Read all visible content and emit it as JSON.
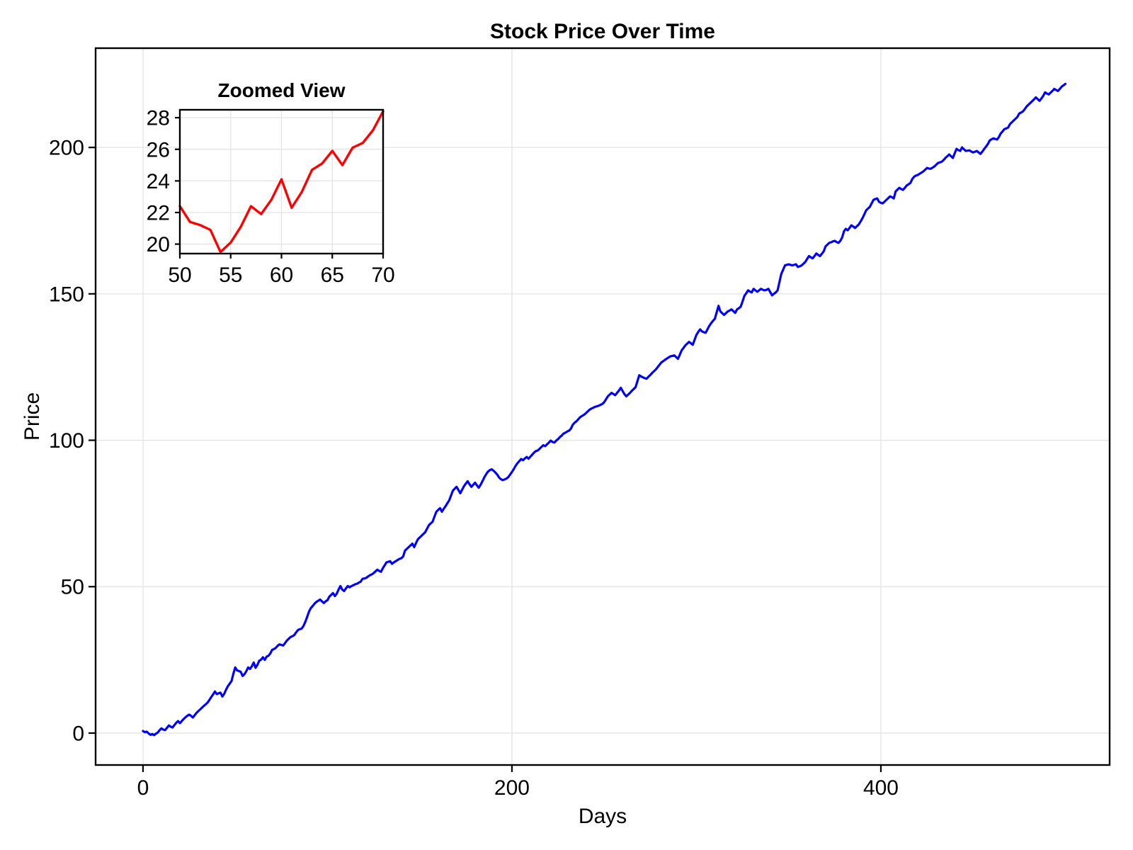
{
  "figure": {
    "title": "Stock Price Over Time",
    "xlabel": "Days",
    "ylabel": "Price",
    "inset_title": "Zoomed View"
  },
  "colors": {
    "main_line": "#0000ff",
    "inset_line": "#ff0000",
    "grid": "#e3e3e3",
    "axis": "#000000",
    "background": "#ffffff"
  },
  "chart_data": [
    {
      "type": "line",
      "name": "stock-price-series",
      "title": "Stock Price Over Time",
      "xlabel": "Days",
      "ylabel": "Price",
      "legend": null,
      "grid": true,
      "xticks": [
        0,
        200,
        400
      ],
      "yticks": [
        0,
        50,
        100,
        150,
        200
      ],
      "xlim": [
        -25.7,
        524
      ],
      "ylim": [
        -10.9,
        233.9
      ],
      "color": "#0000ff",
      "x_start": 0,
      "x_step": 1,
      "values": [
        0.7,
        0.3,
        0.5,
        -0.1,
        -0.6,
        -0.3,
        -0.7,
        -0.2,
        0.2,
        1.0,
        1.6,
        1.2,
        1.0,
        1.8,
        2.6,
        2.2,
        1.9,
        2.7,
        3.5,
        4.1,
        3.4,
        4.1,
        4.8,
        5.4,
        5.9,
        6.3,
        5.9,
        5.3,
        6.1,
        6.9,
        7.5,
        8.1,
        8.7,
        9.3,
        9.8,
        10.4,
        11.3,
        12.3,
        13.2,
        14.2,
        13.3,
        13.6,
        13.8,
        12.5,
        13.4,
        14.8,
        16.0,
        16.9,
        17.8,
        20.3,
        22.4,
        21.4,
        21.2,
        20.9,
        19.5,
        20.1,
        21.1,
        22.4,
        21.9,
        22.8,
        24.1,
        22.3,
        23.3,
        24.7,
        25.1,
        25.9,
        25.0,
        26.1,
        26.4,
        27.2,
        28.4,
        28.7,
        29.1,
        29.8,
        30.3,
        30.1,
        29.9,
        30.7,
        31.6,
        32.2,
        32.8,
        33.1,
        33.5,
        34.4,
        35.2,
        35.5,
        35.7,
        36.6,
        38.0,
        39.7,
        41.5,
        42.7,
        43.4,
        44.2,
        44.8,
        45.2,
        45.6,
        45.0,
        44.4,
        45.0,
        45.4,
        46.6,
        47.2,
        47.8,
        46.8,
        47.6,
        49.0,
        50.2,
        49.0,
        48.5,
        49.4,
        50.2,
        49.8,
        50.2,
        50.5,
        50.8,
        51.0,
        51.4,
        51.7,
        52.7,
        52.8,
        53.0,
        53.5,
        53.9,
        54.2,
        54.6,
        55.2,
        55.8,
        55.4,
        55.1,
        56.3,
        57.3,
        58.3,
        58.5,
        58.7,
        57.8,
        58.3,
        58.7,
        59.1,
        59.5,
        59.7,
        60.3,
        62.3,
        62.9,
        63.5,
        64.1,
        64.7,
        63.5,
        64.9,
        66.2,
        66.8,
        67.4,
        68.0,
        68.6,
        69.8,
        71.0,
        71.6,
        72.2,
        73.9,
        75.6,
        76.2,
        76.8,
        75.6,
        76.6,
        77.5,
        78.5,
        79.5,
        81.2,
        82.8,
        83.5,
        84.1,
        83.0,
        81.9,
        83.1,
        84.3,
        85.2,
        86.0,
        85.0,
        84.1,
        84.8,
        85.5,
        84.6,
        83.8,
        84.8,
        86.0,
        87.3,
        88.4,
        89.3,
        89.8,
        90.1,
        89.6,
        89.0,
        88.3,
        87.3,
        86.7,
        86.4,
        86.6,
        86.9,
        87.4,
        88.3,
        89.2,
        90.2,
        91.3,
        92.2,
        92.9,
        93.6,
        93.2,
        93.8,
        94.3,
        93.7,
        94.4,
        95.1,
        95.8,
        96.3,
        96.5,
        97.1,
        97.7,
        98.3,
        98.0,
        98.6,
        99.2,
        99.9,
        99.4,
        99.2,
        99.9,
        100.4,
        101.1,
        101.6,
        102.3,
        102.6,
        103.0,
        103.3,
        104.0,
        105.3,
        106.0,
        106.5,
        107.2,
        107.9,
        108.3,
        108.7,
        109.2,
        109.8,
        110.4,
        110.8,
        111.1,
        111.4,
        111.6,
        111.8,
        112.1,
        112.4,
        113.0,
        114.0,
        115.0,
        115.6,
        116.2,
        115.8,
        115.4,
        116.2,
        117.0,
        117.9,
        116.8,
        115.7,
        115.0,
        115.6,
        116.2,
        116.9,
        117.5,
        118.1,
        120.1,
        122.2,
        121.8,
        121.5,
        121.2,
        121.0,
        121.7,
        122.3,
        123.0,
        123.6,
        124.2,
        125.0,
        125.8,
        126.6,
        127.0,
        127.5,
        127.9,
        128.3,
        128.7,
        128.8,
        129.0,
        128.4,
        127.8,
        129.2,
        130.7,
        131.5,
        132.4,
        133.0,
        133.6,
        133.1,
        132.6,
        134.3,
        136.0,
        137.0,
        137.9,
        137.2,
        136.9,
        136.7,
        137.9,
        139.1,
        140.0,
        140.8,
        141.5,
        143.7,
        145.9,
        144.0,
        143.4,
        142.8,
        143.4,
        144.0,
        144.3,
        144.7,
        144.1,
        143.5,
        144.7,
        145.1,
        145.6,
        147.4,
        149.3,
        150.2,
        151.2,
        150.8,
        150.5,
        151.7,
        151.2,
        150.7,
        151.2,
        151.7,
        151.4,
        151.2,
        151.4,
        151.7,
        150.6,
        149.5,
        150.0,
        150.5,
        151.2,
        154.0,
        156.8,
        158.2,
        159.7,
        159.9,
        160.1,
        159.9,
        159.7,
        159.9,
        160.1,
        159.2,
        159.4,
        159.7,
        160.3,
        160.9,
        161.9,
        162.9,
        162.5,
        162.1,
        162.9,
        163.8,
        163.3,
        162.9,
        163.7,
        164.5,
        166.2,
        166.8,
        167.4,
        167.6,
        167.9,
        168.1,
        167.7,
        167.4,
        168.1,
        169.3,
        171.4,
        172.2,
        171.7,
        172.5,
        173.4,
        173.0,
        172.5,
        173.1,
        173.7,
        174.7,
        175.8,
        177.1,
        178.5,
        179.1,
        179.7,
        180.9,
        182.1,
        182.4,
        182.6,
        181.4,
        181.1,
        180.9,
        181.5,
        182.1,
        182.7,
        183.3,
        183.0,
        182.6,
        185.0,
        185.6,
        186.2,
        185.8,
        185.5,
        186.2,
        187.0,
        187.4,
        187.9,
        189.2,
        190.0,
        190.4,
        190.6,
        191.0,
        191.4,
        191.8,
        192.4,
        193.0,
        192.8,
        192.7,
        193.1,
        193.5,
        194.1,
        194.7,
        194.9,
        195.1,
        195.7,
        196.4,
        197.0,
        197.6,
        197.0,
        196.4,
        198.0,
        199.5,
        199.1,
        198.8,
        200.0,
        199.4,
        198.8,
        198.9,
        199.0,
        198.6,
        198.3,
        198.5,
        198.8,
        198.3,
        197.8,
        198.6,
        199.5,
        200.3,
        201.2,
        202.4,
        202.8,
        203.1,
        202.9,
        202.7,
        203.6,
        204.8,
        205.5,
        206.3,
        206.5,
        206.8,
        208.0,
        208.6,
        209.2,
        209.8,
        210.4,
        211.6,
        211.9,
        212.3,
        213.1,
        214.0,
        214.6,
        215.2,
        215.8,
        216.4,
        217.1,
        216.5,
        215.9,
        216.7,
        217.6,
        218.8,
        218.4,
        218.1,
        218.7,
        219.3,
        220.0,
        219.6,
        219.3,
        220.0,
        220.8,
        221.2,
        221.7
      ]
    },
    {
      "type": "line",
      "name": "stock-price-zoom-series",
      "title": "Zoomed View",
      "xlabel": "",
      "ylabel": "",
      "legend": null,
      "grid": true,
      "xticks": [
        50,
        55,
        60,
        65,
        70
      ],
      "yticks": [
        20,
        22,
        24,
        26,
        28
      ],
      "xlim": [
        50,
        70
      ],
      "ylim": [
        19.4,
        28.5
      ],
      "color": "#ff0000",
      "x_start": 50,
      "x_step": 1,
      "values": [
        22.4,
        21.4,
        21.2,
        20.9,
        19.5,
        20.1,
        21.1,
        22.4,
        21.9,
        22.8,
        24.1,
        22.3,
        23.3,
        24.7,
        25.1,
        25.9,
        25.0,
        26.1,
        26.4,
        27.2,
        28.4
      ]
    }
  ]
}
